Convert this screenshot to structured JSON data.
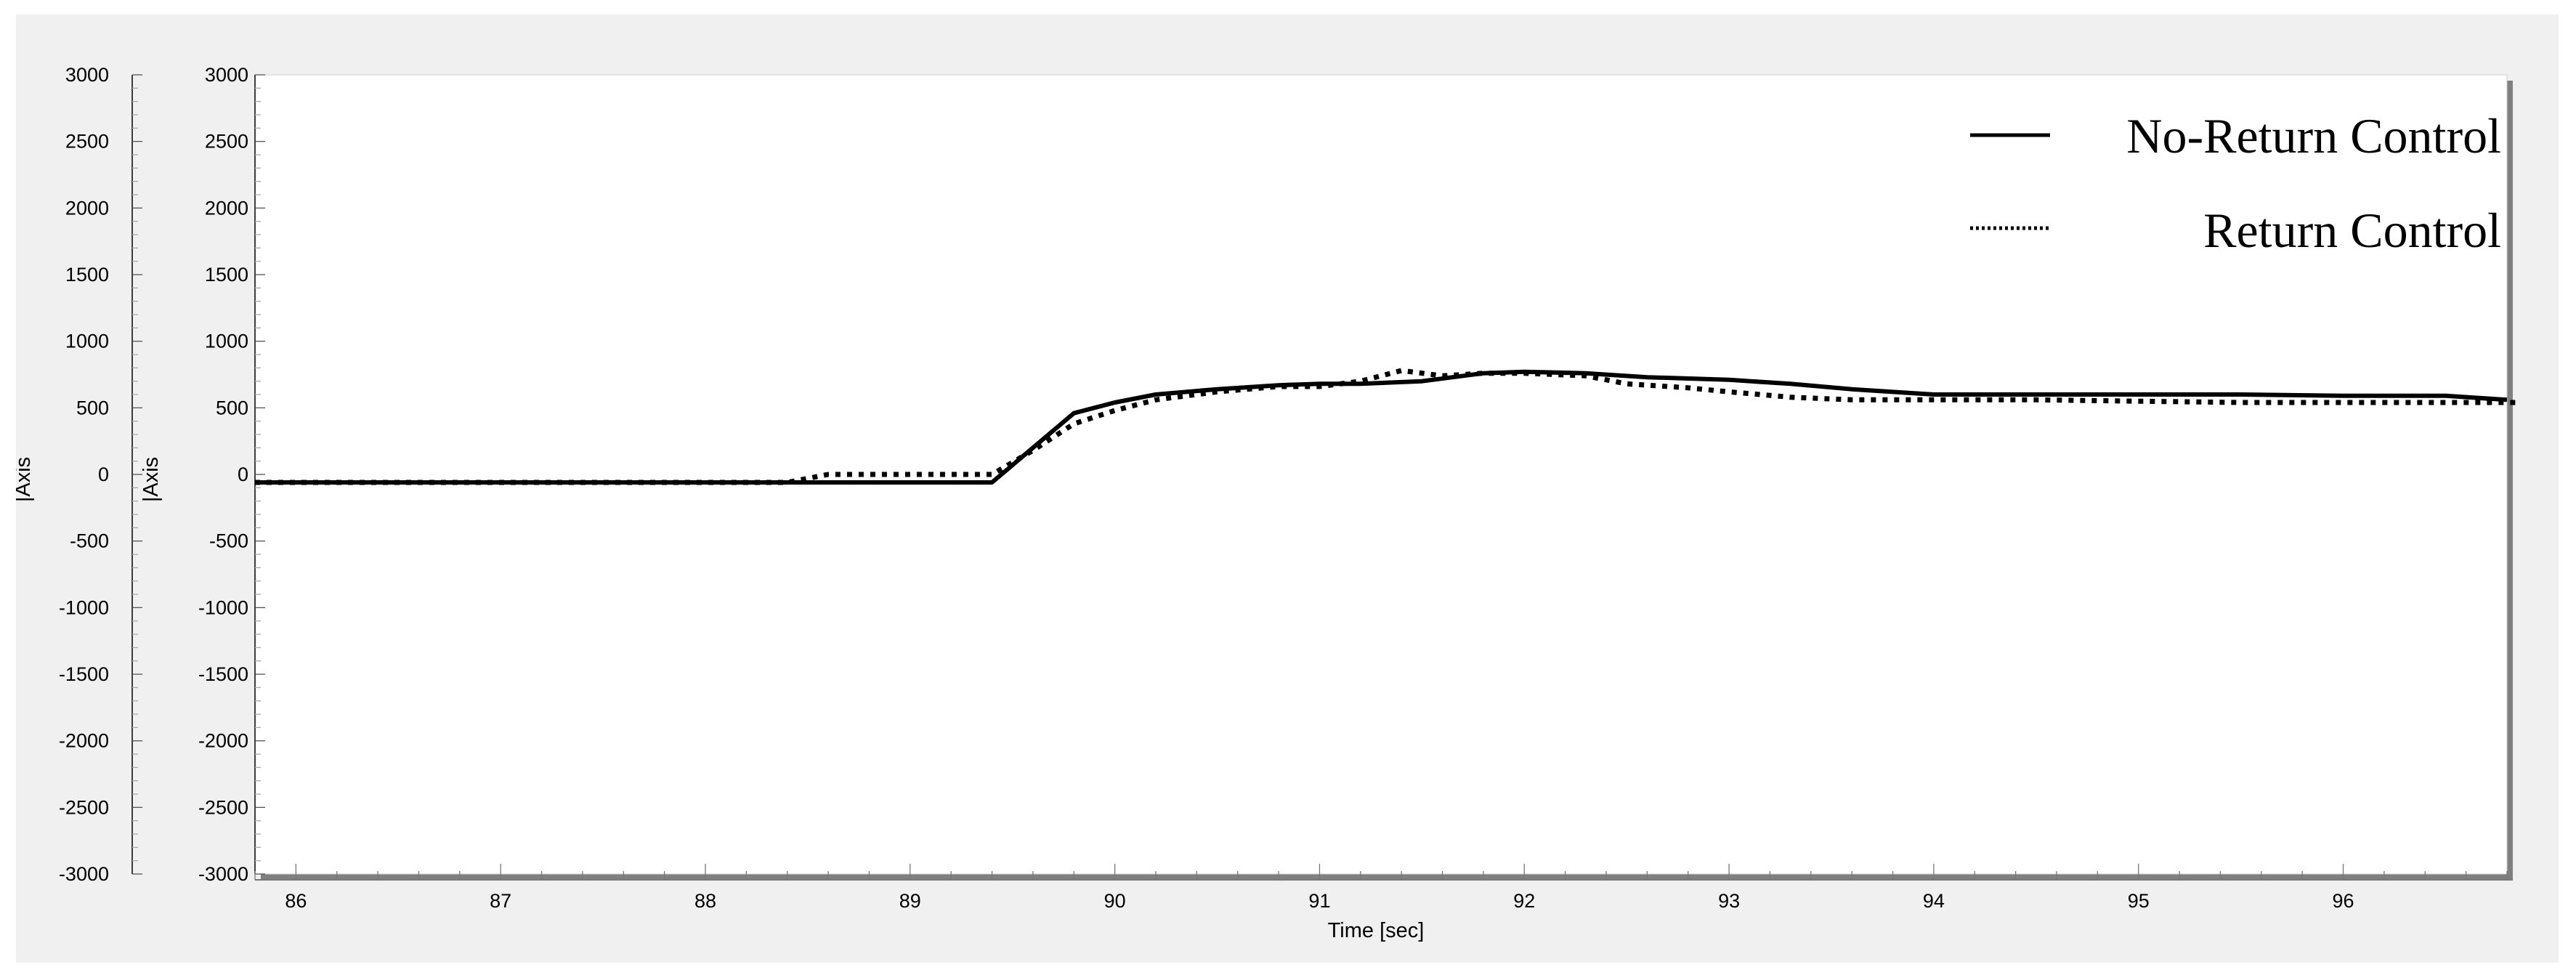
{
  "chart_data": {
    "type": "line",
    "xlabel": "Time [sec]",
    "ylabel": "|Axis",
    "y_axes": [
      {
        "label": "|Axis",
        "ticks": [
          3000,
          2500,
          2000,
          1500,
          1000,
          500,
          0,
          -500,
          -1000,
          -1500,
          -2000,
          -2500,
          -3000
        ]
      },
      {
        "label": "|Axis",
        "ticks": [
          3000,
          2500,
          2000,
          1500,
          1000,
          500,
          0,
          -500,
          -1000,
          -1500,
          -2000,
          -2500,
          -3000
        ]
      }
    ],
    "xlim": [
      85.8,
      96.8
    ],
    "ylim": [
      -3000,
      3000
    ],
    "x_ticks": [
      86,
      87,
      88,
      89,
      90,
      91,
      92,
      93,
      94,
      95,
      96
    ],
    "legend_position": "top-right",
    "series": [
      {
        "name": "No-Return Control",
        "style": "solid",
        "color": "#000000",
        "x": [
          85.8,
          86.5,
          87.5,
          88.5,
          89.0,
          89.4,
          89.6,
          89.8,
          90.0,
          90.2,
          90.5,
          90.8,
          91.0,
          91.2,
          91.5,
          91.8,
          92.0,
          92.3,
          92.6,
          93.0,
          93.3,
          93.6,
          94.0,
          94.5,
          95.0,
          95.5,
          96.0,
          96.5,
          96.8
        ],
        "y": [
          -60,
          -60,
          -60,
          -60,
          -60,
          -60,
          200,
          460,
          540,
          600,
          640,
          670,
          680,
          680,
          700,
          760,
          770,
          760,
          730,
          710,
          680,
          640,
          600,
          600,
          600,
          600,
          590,
          590,
          560
        ]
      },
      {
        "name": "Return Control",
        "style": "dotted",
        "color": "#000000",
        "x": [
          85.8,
          86.5,
          87.5,
          88.4,
          88.6,
          89.0,
          89.4,
          89.6,
          89.8,
          90.0,
          90.2,
          90.5,
          90.8,
          91.0,
          91.2,
          91.4,
          91.6,
          91.8,
          92.0,
          92.3,
          92.5,
          92.8,
          93.0,
          93.3,
          93.6,
          94.0,
          94.5,
          95.0,
          95.5,
          96.0,
          96.5,
          96.85
        ],
        "y": [
          -60,
          -60,
          -60,
          -60,
          0,
          0,
          0,
          180,
          380,
          480,
          560,
          620,
          660,
          660,
          700,
          780,
          740,
          760,
          760,
          740,
          680,
          650,
          620,
          580,
          560,
          560,
          560,
          550,
          540,
          540,
          540,
          540
        ]
      }
    ]
  }
}
